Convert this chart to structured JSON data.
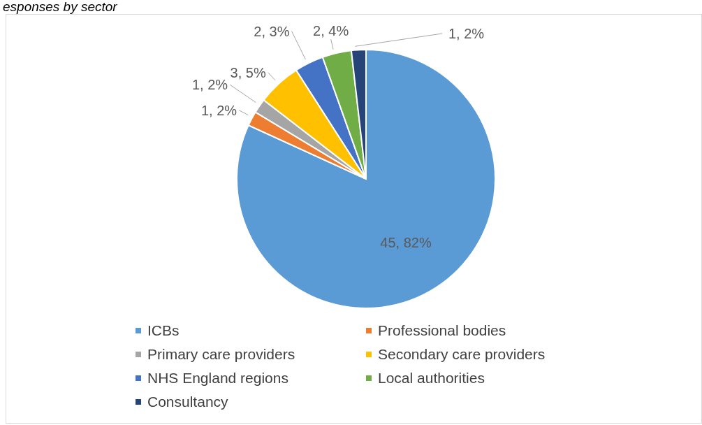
{
  "chart_data": {
    "type": "pie",
    "title": "esponses by sector",
    "categories": [
      "ICBs",
      "Professional bodies",
      "Primary care providers",
      "Secondary care providers",
      "NHS England regions",
      "Local authorities",
      "Consultancy"
    ],
    "values": [
      45,
      1,
      1,
      3,
      2,
      2,
      1
    ],
    "value_labels": [
      "45, 82%",
      "1, 2%",
      "1, 2%",
      "3, 5%",
      "2, 3%",
      "2, 4%",
      "1, 2%"
    ],
    "colors": [
      "#5b9bd5",
      "#ed7d31",
      "#a5a5a5",
      "#ffc000",
      "#4472c4",
      "#70ad47",
      "#264478"
    ],
    "legend": "bottom"
  }
}
